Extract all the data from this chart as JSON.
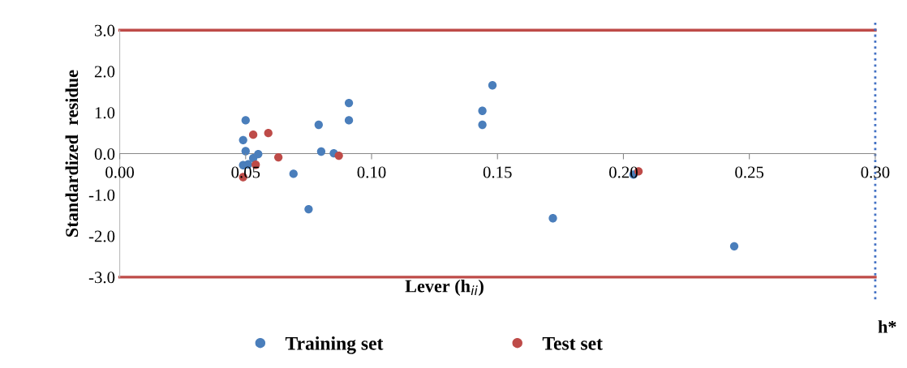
{
  "chart_data": {
    "type": "scatter",
    "xlabel": "Lever (h$_{ii}$)",
    "ylabel": "Standardized  residue",
    "xlim": [
      0,
      0.3
    ],
    "xticks": [
      {
        "value": 0,
        "label": "0.00"
      },
      {
        "value": 0.05,
        "label": "0.05"
      },
      {
        "value": 0.1,
        "label": "0.10"
      },
      {
        "value": 0.15,
        "label": "0.15"
      },
      {
        "value": 0.2,
        "label": "0.20"
      },
      {
        "value": 0.25,
        "label": "0.25"
      },
      {
        "value": 0.3,
        "label": "0.30"
      }
    ],
    "ylim": [
      -3,
      3
    ],
    "yticks": [
      {
        "value": -3,
        "label": "-3.0"
      },
      {
        "value": -2,
        "label": "-2.0"
      },
      {
        "value": -1,
        "label": "-1.0"
      },
      {
        "value": 0,
        "label": "0.0"
      },
      {
        "value": 1,
        "label": "1.0"
      },
      {
        "value": 2,
        "label": "2.0"
      },
      {
        "value": 3,
        "label": "3.0"
      }
    ],
    "grid": false,
    "legend": "bottom",
    "marker": "circle",
    "series": [
      {
        "name": "Training set",
        "color": "#4a7ebb",
        "x": [
          0.05,
          0.049,
          0.05,
          0.055,
          0.053,
          0.049,
          0.051,
          0.069,
          0.075,
          0.079,
          0.08,
          0.085,
          0.091,
          0.091,
          0.148,
          0.144,
          0.144,
          0.172,
          0.244,
          0.204
        ],
        "values": [
          0.81,
          0.33,
          0.06,
          -0.01,
          -0.11,
          -0.28,
          -0.26,
          -0.49,
          -1.35,
          0.7,
          0.05,
          0.01,
          1.23,
          0.81,
          1.66,
          1.04,
          0.7,
          -1.57,
          -2.25,
          -0.51
        ]
      },
      {
        "name": "Test set",
        "color": "#be4b48",
        "x": [
          0.053,
          0.059,
          0.063,
          0.087,
          0.054,
          0.049,
          0.206
        ],
        "values": [
          0.46,
          0.5,
          -0.09,
          -0.05,
          -0.27,
          -0.57,
          -0.43
        ]
      }
    ],
    "ref_lines": [
      {
        "axis": "y",
        "value": 3,
        "label": null,
        "color": "#be4b48",
        "line_style": "solid"
      },
      {
        "axis": "y",
        "value": -3,
        "label": null,
        "color": "#be4b48",
        "line_style": "solid"
      },
      {
        "axis": "x",
        "value": 0.3,
        "label": "h*",
        "color": "#4472c4",
        "line_style": "dotted"
      }
    ]
  }
}
